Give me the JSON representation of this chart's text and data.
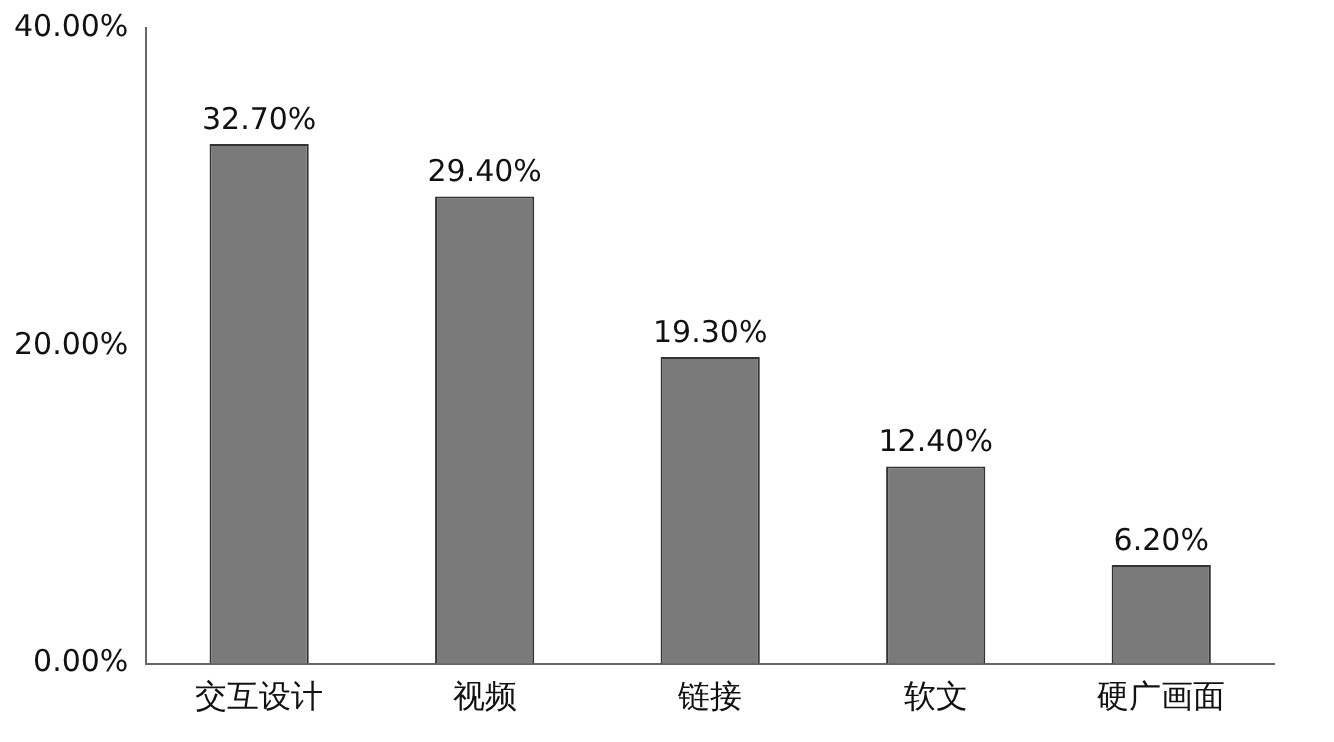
{
  "chart_data": {
    "type": "bar",
    "categories": [
      "交互设计",
      "视频",
      "链接",
      "软文",
      "硬广画面"
    ],
    "values": [
      32.7,
      29.4,
      19.3,
      12.4,
      6.2
    ],
    "value_labels": [
      "32.70%",
      "29.40%",
      "19.30%",
      "12.40%",
      "6.20%"
    ],
    "color": "#7a7a7a",
    "ylim": [
      0,
      40
    ],
    "yticks": [
      {
        "value": 0,
        "label": "0.00%"
      },
      {
        "value": 20,
        "label": "20.00%"
      },
      {
        "value": 40,
        "label": "40.00%"
      }
    ],
    "grid": false,
    "legend": false
  }
}
